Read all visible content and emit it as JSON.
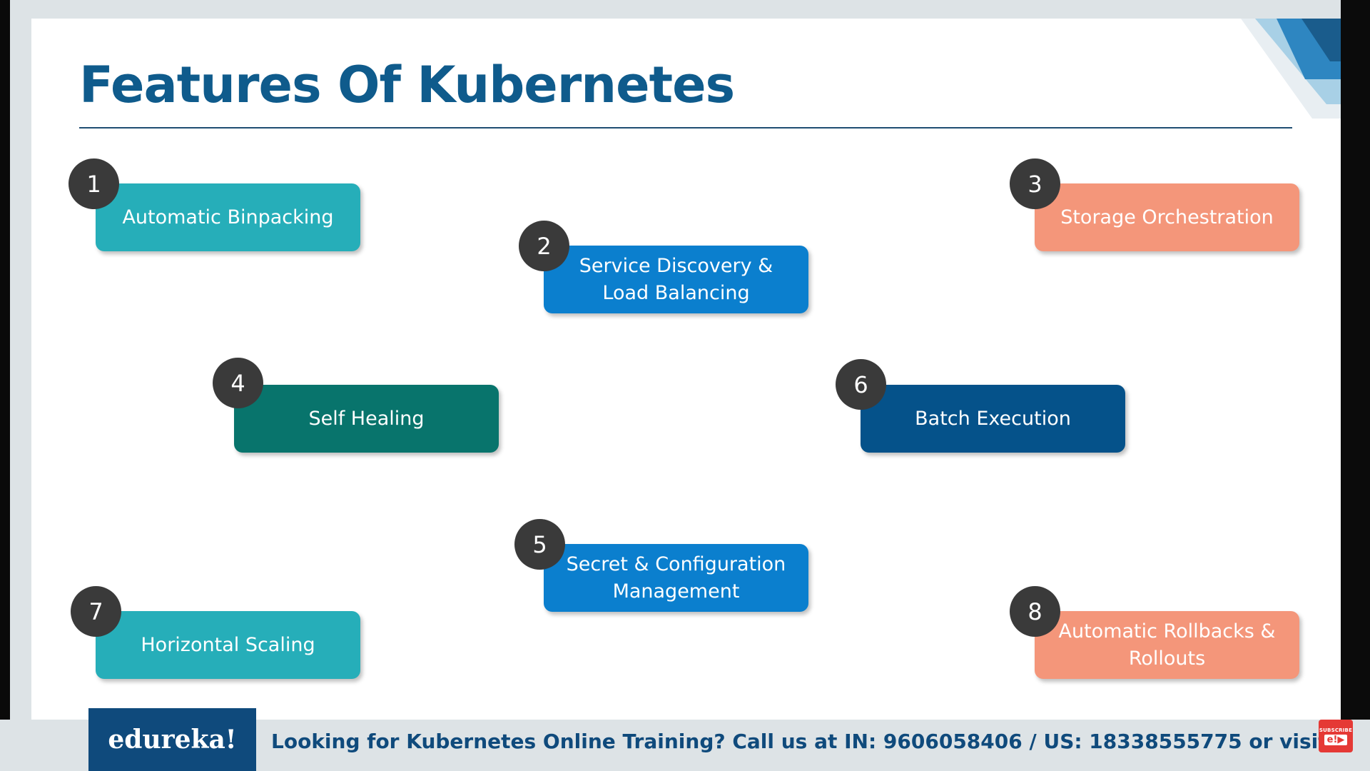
{
  "slide": {
    "title": "Features Of Kubernetes",
    "features": [
      {
        "number": "1",
        "label": "Automatic Binpacking",
        "color": "#26aeb9"
      },
      {
        "number": "2",
        "label": "Service Discovery & Load Balancing",
        "color": "#0b7fce"
      },
      {
        "number": "3",
        "label": "Storage Orchestration",
        "color": "#f4967a"
      },
      {
        "number": "4",
        "label": "Self Healing",
        "color": "#08746c"
      },
      {
        "number": "5",
        "label": "Secret & Configuration Management",
        "color": "#0b7fce"
      },
      {
        "number": "6",
        "label": "Batch Execution",
        "color": "#05528a"
      },
      {
        "number": "7",
        "label": "Horizontal Scaling",
        "color": "#26aeb9"
      },
      {
        "number": "8",
        "label": "Automatic Rollbacks & Rollouts",
        "color": "#f4967a"
      }
    ]
  },
  "footer": {
    "logo": "edureka!",
    "text": "Looking for Kubernetes Online Training? Call us at IN: 9606058406 / US: 18338555775 or visit www.edureka.co",
    "subscribe_label": "SUBSCRIBE",
    "subscribe_icon": "e!▶"
  },
  "colors": {
    "title": "#0f5b8c",
    "badge": "#3a3a3a",
    "footer_brand": "#0f4a7c",
    "subscribe": "#e53935"
  },
  "icons": {
    "corner": "corner-stripes-decoration",
    "subscribe": "subscribe-icon"
  }
}
